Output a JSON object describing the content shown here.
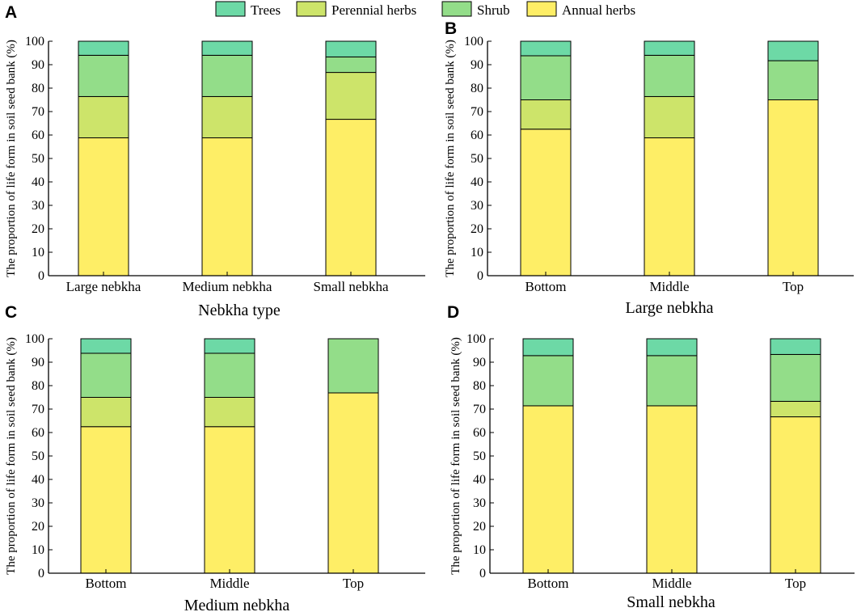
{
  "legend": [
    {
      "name": "Trees",
      "color": "#6dd9a6"
    },
    {
      "name": "Perennial herbs",
      "color": "#cde46a"
    },
    {
      "name": "Shrub",
      "color": "#93dd89"
    },
    {
      "name": "Annual herbs",
      "color": "#feee66"
    }
  ],
  "y_ticks": [
    "0",
    "10",
    "20",
    "30",
    "40",
    "50",
    "60",
    "70",
    "80",
    "90",
    "100"
  ],
  "chart_data": [
    {
      "panel": "A",
      "type": "bar",
      "stacked": true,
      "title": "",
      "xlabel": "Nebkha type",
      "ylabel": "The proportion of life form in soil seed bank (%)",
      "ylim": [
        0,
        100
      ],
      "categories": [
        "Large nebkha",
        "Medium nebkha",
        "Small nebkha"
      ],
      "series": [
        {
          "name": "Annual herbs",
          "values": [
            58.8,
            58.8,
            66.7
          ]
        },
        {
          "name": "Perennial herbs",
          "values": [
            17.6,
            17.6,
            20.0
          ]
        },
        {
          "name": "Shrub",
          "values": [
            17.6,
            17.6,
            6.6
          ]
        },
        {
          "name": "Trees",
          "values": [
            6.0,
            6.0,
            6.7
          ]
        }
      ]
    },
    {
      "panel": "B",
      "type": "bar",
      "stacked": true,
      "title": "",
      "xlabel": "Large nebkha",
      "ylabel": "The proportion of life form in soil seed bank (%)",
      "ylim": [
        0,
        100
      ],
      "categories": [
        "Bottom",
        "Middle",
        "Top"
      ],
      "series": [
        {
          "name": "Annual herbs",
          "values": [
            62.5,
            58.8,
            75.0
          ]
        },
        {
          "name": "Perennial herbs",
          "values": [
            12.5,
            17.6,
            0
          ]
        },
        {
          "name": "Shrub",
          "values": [
            18.8,
            17.6,
            16.7
          ]
        },
        {
          "name": "Trees",
          "values": [
            6.2,
            6.0,
            8.3
          ]
        }
      ]
    },
    {
      "panel": "C",
      "type": "bar",
      "stacked": true,
      "title": "",
      "xlabel": "Medium nebkha",
      "ylabel": "The proportion of life form in soil seed bank (%)",
      "ylim": [
        0,
        100
      ],
      "categories": [
        "Bottom",
        "Middle",
        "Top"
      ],
      "series": [
        {
          "name": "Annual herbs",
          "values": [
            62.5,
            62.5,
            76.9
          ]
        },
        {
          "name": "Perennial herbs",
          "values": [
            12.5,
            12.5,
            0
          ]
        },
        {
          "name": "Shrub",
          "values": [
            18.8,
            18.8,
            23.1
          ]
        },
        {
          "name": "Trees",
          "values": [
            6.2,
            6.2,
            0
          ]
        }
      ]
    },
    {
      "panel": "D",
      "type": "bar",
      "stacked": true,
      "title": "",
      "xlabel": "Small nebkha",
      "ylabel": "The proportion of life form in soil seed bank (%)",
      "ylim": [
        0,
        100
      ],
      "categories": [
        "Bottom",
        "Middle",
        "Top"
      ],
      "series": [
        {
          "name": "Annual herbs",
          "values": [
            71.4,
            71.4,
            66.7
          ]
        },
        {
          "name": "Perennial herbs",
          "values": [
            0,
            0,
            6.6
          ]
        },
        {
          "name": "Shrub",
          "values": [
            21.4,
            21.4,
            20.0
          ]
        },
        {
          "name": "Trees",
          "values": [
            7.2,
            7.2,
            6.7
          ]
        }
      ]
    }
  ]
}
